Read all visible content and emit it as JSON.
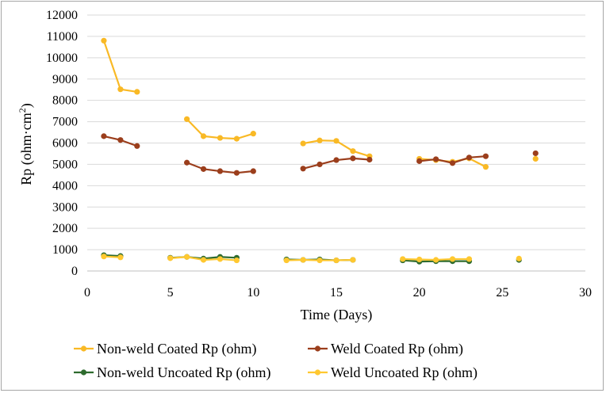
{
  "chart_data": {
    "type": "line",
    "title": "",
    "xlabel": "Time (Days)",
    "ylabel": "Rp (ohm·cm²)",
    "ylabel_base": "Rp (ohm·cm",
    "ylabel_sup": "2",
    "ylabel_close": ")",
    "xlim": [
      0,
      30
    ],
    "ylim": [
      0,
      12000
    ],
    "xticks": [
      "0",
      "5",
      "10",
      "15",
      "20",
      "25",
      "30"
    ],
    "yticks": [
      "0",
      "1000",
      "2000",
      "3000",
      "4000",
      "5000",
      "6000",
      "7000",
      "8000",
      "9000",
      "10000",
      "11000",
      "12000"
    ],
    "grid": "horizontal",
    "legend_position": "bottom",
    "series": [
      {
        "name": "Non-weld Coated Rp (ohm)",
        "color": "#f9b925",
        "segments": [
          [
            [
              1,
              10800
            ],
            [
              2,
              8520
            ],
            [
              3,
              8400
            ]
          ],
          [
            [
              6,
              7120
            ],
            [
              7,
              6320
            ],
            [
              8,
              6240
            ],
            [
              9,
              6200
            ],
            [
              10,
              6440
            ]
          ],
          [
            [
              13,
              5980
            ],
            [
              14,
              6120
            ],
            [
              15,
              6100
            ],
            [
              16,
              5620
            ],
            [
              17,
              5380
            ]
          ],
          [
            [
              20,
              5260
            ],
            [
              21,
              5200
            ],
            [
              22,
              5120
            ],
            [
              23,
              5280
            ],
            [
              24,
              4880
            ]
          ],
          [
            [
              27,
              5260
            ]
          ]
        ]
      },
      {
        "name": "Weld Coated Rp (ohm)",
        "color": "#9b3e1c",
        "segments": [
          [
            [
              1,
              6320
            ],
            [
              2,
              6140
            ],
            [
              3,
              5860
            ]
          ],
          [
            [
              6,
              5080
            ],
            [
              7,
              4780
            ],
            [
              8,
              4680
            ],
            [
              9,
              4600
            ],
            [
              10,
              4680
            ]
          ],
          [
            [
              13,
              4800
            ],
            [
              14,
              5000
            ],
            [
              15,
              5200
            ],
            [
              16,
              5280
            ],
            [
              17,
              5220
            ]
          ],
          [
            [
              20,
              5150
            ],
            [
              21,
              5240
            ],
            [
              22,
              5060
            ],
            [
              23,
              5320
            ],
            [
              24,
              5380
            ]
          ],
          [
            [
              27,
              5520
            ]
          ]
        ]
      },
      {
        "name": "Non-weld Uncoated Rp (ohm)",
        "color": "#2e6b2e",
        "segments": [
          [
            [
              1,
              740
            ],
            [
              2,
              700
            ]
          ],
          [
            [
              5,
              620
            ],
            [
              6,
              660
            ],
            [
              7,
              580
            ],
            [
              8,
              660
            ],
            [
              9,
              620
            ]
          ],
          [
            [
              12,
              540
            ],
            [
              13,
              520
            ],
            [
              14,
              540
            ],
            [
              15,
              500
            ],
            [
              16,
              520
            ]
          ],
          [
            [
              19,
              500
            ],
            [
              20,
              440
            ],
            [
              21,
              460
            ],
            [
              22,
              460
            ],
            [
              23,
              460
            ]
          ],
          [
            [
              26,
              520
            ]
          ]
        ]
      },
      {
        "name": "Weld Uncoated Rp (ohm)",
        "color": "#ffc830",
        "segments": [
          [
            [
              1,
              680
            ],
            [
              2,
              640
            ]
          ],
          [
            [
              5,
              600
            ],
            [
              6,
              660
            ],
            [
              7,
              520
            ],
            [
              8,
              560
            ],
            [
              9,
              500
            ]
          ],
          [
            [
              12,
              500
            ],
            [
              13,
              520
            ],
            [
              14,
              500
            ],
            [
              15,
              500
            ],
            [
              16,
              520
            ]
          ],
          [
            [
              19,
              560
            ],
            [
              20,
              540
            ],
            [
              21,
              520
            ],
            [
              22,
              560
            ],
            [
              23,
              560
            ]
          ],
          [
            [
              26,
              580
            ]
          ]
        ]
      }
    ]
  }
}
